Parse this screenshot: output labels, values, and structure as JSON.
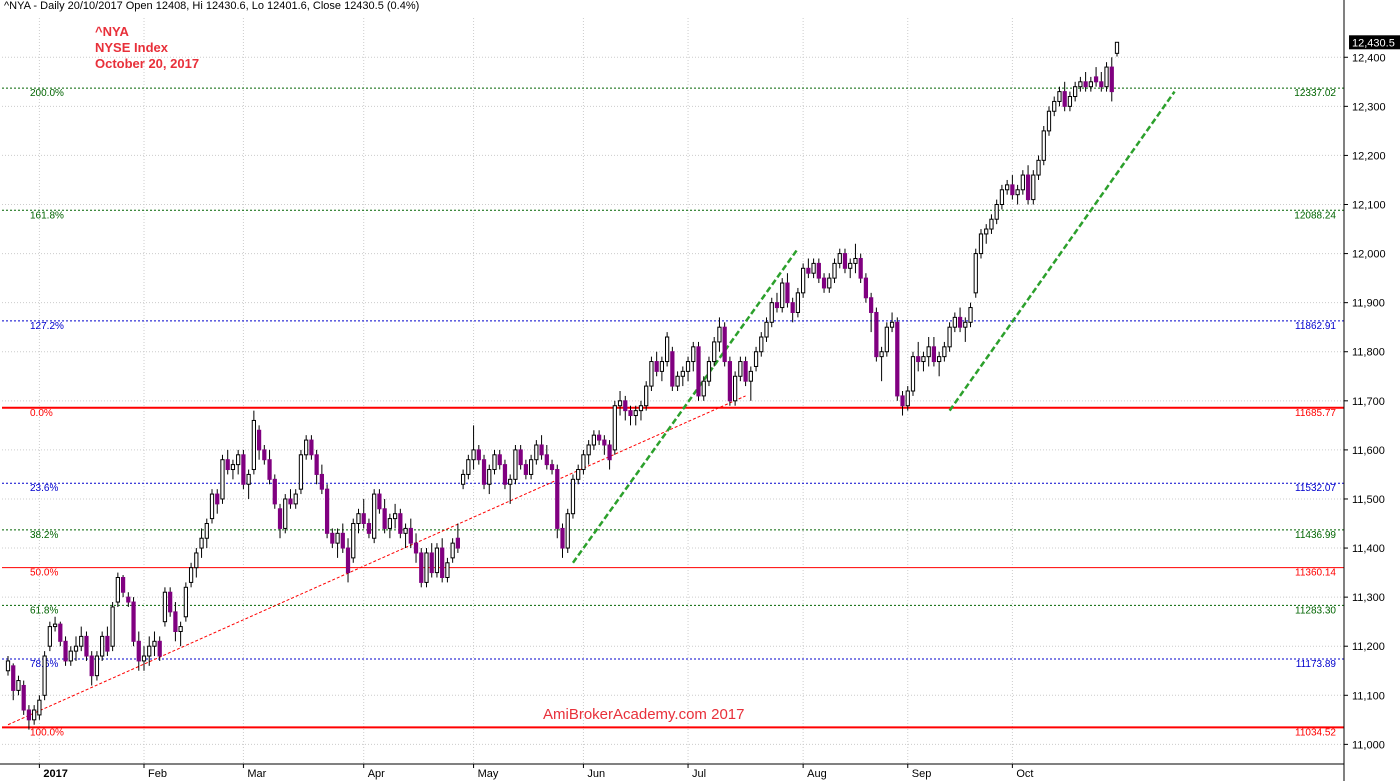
{
  "header": {
    "text": "^NYA - Daily 20/10/2017 Open 12408, Hi 12430.6, Lo 12401.6, Close 12430.5 (0.4%)"
  },
  "annotation": {
    "line1": "^NYA",
    "line2": "NYSE Index",
    "line3": "October 20, 2017"
  },
  "watermark": "AmiBrokerAcademy.com  2017",
  "chart_data": {
    "type": "candlestick",
    "x_axis_labels": [
      "2017",
      "Feb",
      "Mar",
      "Apr",
      "May",
      "Jun",
      "Jul",
      "Aug",
      "Sep",
      "Oct"
    ],
    "y_ticks": [
      11000,
      11100,
      11200,
      11300,
      11400,
      11500,
      11600,
      11700,
      11800,
      11900,
      12000,
      12100,
      12200,
      12300,
      12400
    ],
    "y_tick_labels": [
      "11,000",
      "11,100",
      "11,200",
      "11,300",
      "11,400",
      "11,500",
      "11,600",
      "11,700",
      "11,800",
      "11,900",
      "12,000",
      "12,100",
      "12,200",
      "12,300",
      "12,400"
    ],
    "ylim": [
      10960,
      12480
    ],
    "last_price_label": "12,430.5",
    "last_price": 12430.5,
    "colors": {
      "up": "#ffffff",
      "down": "#800080",
      "red": "#ff0000",
      "green": "#006400",
      "blue": "#0000cd"
    },
    "fib_levels": [
      {
        "label": "200.0%",
        "value": 12337.02,
        "value_label": "12337.02",
        "color": "#006400",
        "style": "dotted"
      },
      {
        "label": "161.8%",
        "value": 12088.24,
        "value_label": "12088.24",
        "color": "#006400",
        "style": "dotted"
      },
      {
        "label": "127.2%",
        "value": 11862.91,
        "value_label": "11862.91",
        "color": "#0000cd",
        "style": "dotted"
      },
      {
        "label": "0.0%",
        "value": 11685.77,
        "value_label": "11685.77",
        "color": "#ff0000",
        "style": "solid-thick"
      },
      {
        "label": "23.6%",
        "value": 11532.07,
        "value_label": "11532.07",
        "color": "#0000cd",
        "style": "dotted"
      },
      {
        "label": "38.2%",
        "value": 11436.99,
        "value_label": "11436.99",
        "color": "#006400",
        "style": "dotted"
      },
      {
        "label": "50.0%",
        "value": 11360.14,
        "value_label": "11360.14",
        "color": "#ff0000",
        "style": "solid"
      },
      {
        "label": "61.8%",
        "value": 11283.3,
        "value_label": "11283.30",
        "color": "#006400",
        "style": "dotted"
      },
      {
        "label": "78.6%",
        "value": 11173.89,
        "value_label": "11173.89",
        "color": "#0000cd",
        "style": "dotted"
      },
      {
        "label": "100.0%",
        "value": 11034.52,
        "value_label": "11034.52",
        "color": "#ff0000",
        "style": "solid-thick"
      }
    ],
    "trendlines": [
      {
        "from": [
          0,
          11040
        ],
        "to": [
          141,
          11710
        ],
        "color": "#ff0000",
        "style": "dotted"
      },
      {
        "from": [
          108,
          11370
        ],
        "to": [
          151,
          12010
        ],
        "color": "#2ca02c",
        "style": "dashed"
      },
      {
        "from": [
          180,
          11680
        ],
        "to": [
          223,
          12330
        ],
        "color": "#2ca02c",
        "style": "dashed"
      }
    ],
    "candles": [
      [
        11150,
        11180,
        11140,
        11170
      ],
      [
        11160,
        11165,
        11090,
        11110
      ],
      [
        11110,
        11140,
        11100,
        11130
      ],
      [
        11120,
        11130,
        11060,
        11070
      ],
      [
        11070,
        11080,
        11030,
        11050
      ],
      [
        11050,
        11080,
        11040,
        11070
      ],
      [
        11060,
        11100,
        11050,
        11090
      ],
      [
        11100,
        11190,
        11090,
        11180
      ],
      [
        11200,
        11250,
        11190,
        11240
      ],
      [
        11240,
        11260,
        11230,
        11245
      ],
      [
        11245,
        11250,
        11200,
        11210
      ],
      [
        11210,
        11220,
        11160,
        11170
      ],
      [
        11170,
        11200,
        11160,
        11190
      ],
      [
        11190,
        11220,
        11170,
        11200
      ],
      [
        11200,
        11240,
        11190,
        11220
      ],
      [
        11220,
        11230,
        11170,
        11180
      ],
      [
        11180,
        11190,
        11120,
        11140
      ],
      [
        11140,
        11190,
        11130,
        11180
      ],
      [
        11180,
        11230,
        11170,
        11220
      ],
      [
        11220,
        11240,
        11180,
        11190
      ],
      [
        11200,
        11290,
        11190,
        11280
      ],
      [
        11290,
        11350,
        11280,
        11340
      ],
      [
        11340,
        11345,
        11300,
        11310
      ],
      [
        11300,
        11310,
        11280,
        11290
      ],
      [
        11290,
        11300,
        11200,
        11210
      ],
      [
        11210,
        11230,
        11150,
        11170
      ],
      [
        11170,
        11200,
        11150,
        11180
      ],
      [
        11180,
        11220,
        11160,
        11200
      ],
      [
        11200,
        11230,
        11180,
        11210
      ],
      [
        11210,
        11220,
        11170,
        11180
      ],
      [
        11250,
        11320,
        11240,
        11310
      ],
      [
        11310,
        11320,
        11260,
        11270
      ],
      [
        11270,
        11290,
        11210,
        11230
      ],
      [
        11230,
        11250,
        11200,
        11240
      ],
      [
        11260,
        11330,
        11250,
        11320
      ],
      [
        11330,
        11370,
        11320,
        11360
      ],
      [
        11360,
        11400,
        11340,
        11390
      ],
      [
        11400,
        11440,
        11380,
        11420
      ],
      [
        11420,
        11460,
        11400,
        11450
      ],
      [
        11460,
        11520,
        11450,
        11510
      ],
      [
        11510,
        11520,
        11470,
        11490
      ],
      [
        11500,
        11590,
        11490,
        11580
      ],
      [
        11580,
        11600,
        11550,
        11560
      ],
      [
        11560,
        11580,
        11540,
        11570
      ],
      [
        11570,
        11600,
        11550,
        11590
      ],
      [
        11590,
        11600,
        11520,
        11530
      ],
      [
        11530,
        11560,
        11500,
        11550
      ],
      [
        11560,
        11680,
        11550,
        11660
      ],
      [
        11640,
        11650,
        11580,
        11600
      ],
      [
        11600,
        11610,
        11570,
        11580
      ],
      [
        11580,
        11600,
        11530,
        11540
      ],
      [
        11540,
        11550,
        11480,
        11490
      ],
      [
        11480,
        11490,
        11420,
        11440
      ],
      [
        11440,
        11510,
        11430,
        11500
      ],
      [
        11500,
        11520,
        11480,
        11490
      ],
      [
        11490,
        11520,
        11480,
        11510
      ],
      [
        11520,
        11600,
        11510,
        11590
      ],
      [
        11590,
        11630,
        11580,
        11620
      ],
      [
        11620,
        11630,
        11580,
        11590
      ],
      [
        11590,
        11600,
        11530,
        11550
      ],
      [
        11550,
        11570,
        11510,
        11520
      ],
      [
        11520,
        11530,
        11420,
        11430
      ],
      [
        11430,
        11440,
        11400,
        11410
      ],
      [
        11410,
        11440,
        11380,
        11430
      ],
      [
        11430,
        11450,
        11390,
        11400
      ],
      [
        11400,
        11420,
        11330,
        11350
      ],
      [
        11380,
        11460,
        11370,
        11450
      ],
      [
        11450,
        11480,
        11430,
        11470
      ],
      [
        11470,
        11500,
        11440,
        11450
      ],
      [
        11450,
        11460,
        11420,
        11430
      ],
      [
        11420,
        11520,
        11410,
        11510
      ],
      [
        11510,
        11520,
        11470,
        11480
      ],
      [
        11480,
        11500,
        11430,
        11440
      ],
      [
        11440,
        11470,
        11420,
        11460
      ],
      [
        11460,
        11490,
        11440,
        11470
      ],
      [
        11470,
        11480,
        11420,
        11430
      ],
      [
        11430,
        11450,
        11400,
        11440
      ],
      [
        11440,
        11460,
        11400,
        11410
      ],
      [
        11410,
        11430,
        11370,
        11390
      ],
      [
        11390,
        11400,
        11320,
        11330
      ],
      [
        11330,
        11400,
        11320,
        11390
      ],
      [
        11390,
        11410,
        11340,
        11350
      ],
      [
        11350,
        11410,
        11340,
        11400
      ],
      [
        11400,
        11420,
        11330,
        11340
      ],
      [
        11340,
        11380,
        11330,
        11370
      ],
      [
        11380,
        11420,
        11370,
        11410
      ],
      [
        11420,
        11450,
        11390,
        11400
      ],
      [
        11530,
        11560,
        11520,
        11550
      ],
      [
        11550,
        11590,
        11540,
        11580
      ],
      [
        11580,
        11650,
        11560,
        11600
      ],
      [
        11600,
        11610,
        11570,
        11580
      ],
      [
        11580,
        11590,
        11520,
        11530
      ],
      [
        11530,
        11570,
        11510,
        11560
      ],
      [
        11560,
        11600,
        11550,
        11590
      ],
      [
        11590,
        11600,
        11560,
        11570
      ],
      [
        11570,
        11580,
        11520,
        11530
      ],
      [
        11530,
        11550,
        11490,
        11540
      ],
      [
        11540,
        11610,
        11530,
        11600
      ],
      [
        11600,
        11610,
        11560,
        11570
      ],
      [
        11570,
        11580,
        11540,
        11550
      ],
      [
        11550,
        11590,
        11540,
        11580
      ],
      [
        11580,
        11620,
        11570,
        11610
      ],
      [
        11610,
        11630,
        11580,
        11590
      ],
      [
        11590,
        11610,
        11560,
        11570
      ],
      [
        11570,
        11580,
        11550,
        11560
      ],
      [
        11560,
        11570,
        11420,
        11440
      ],
      [
        11440,
        11450,
        11380,
        11400
      ],
      [
        11400,
        11480,
        11390,
        11470
      ],
      [
        11470,
        11550,
        11460,
        11540
      ],
      [
        11540,
        11570,
        11530,
        11560
      ],
      [
        11560,
        11600,
        11550,
        11590
      ],
      [
        11590,
        11620,
        11570,
        11610
      ],
      [
        11610,
        11640,
        11600,
        11630
      ],
      [
        11630,
        11640,
        11610,
        11620
      ],
      [
        11620,
        11630,
        11590,
        11610
      ],
      [
        11610,
        11620,
        11560,
        11580
      ],
      [
        11600,
        11700,
        11590,
        11690
      ],
      [
        11690,
        11720,
        11670,
        11700
      ],
      [
        11700,
        11710,
        11660,
        11680
      ],
      [
        11680,
        11690,
        11650,
        11670
      ],
      [
        11670,
        11690,
        11650,
        11680
      ],
      [
        11680,
        11700,
        11660,
        11690
      ],
      [
        11690,
        11740,
        11680,
        11730
      ],
      [
        11730,
        11790,
        11720,
        11780
      ],
      [
        11780,
        11800,
        11750,
        11760
      ],
      [
        11760,
        11790,
        11740,
        11780
      ],
      [
        11780,
        11840,
        11770,
        11830
      ],
      [
        11800,
        11810,
        11720,
        11730
      ],
      [
        11730,
        11760,
        11720,
        11750
      ],
      [
        11750,
        11770,
        11730,
        11760
      ],
      [
        11760,
        11790,
        11740,
        11780
      ],
      [
        11780,
        11820,
        11760,
        11810
      ],
      [
        11810,
        11820,
        11700,
        11710
      ],
      [
        11710,
        11750,
        11700,
        11740
      ],
      [
        11740,
        11790,
        11730,
        11780
      ],
      [
        11780,
        11830,
        11770,
        11820
      ],
      [
        11820,
        11870,
        11800,
        11850
      ],
      [
        11850,
        11860,
        11770,
        11780
      ],
      [
        11780,
        11790,
        11690,
        11700
      ],
      [
        11700,
        11760,
        11690,
        11750
      ],
      [
        11750,
        11790,
        11740,
        11780
      ],
      [
        11780,
        11790,
        11730,
        11740
      ],
      [
        11740,
        11770,
        11700,
        11760
      ],
      [
        11770,
        11810,
        11760,
        11800
      ],
      [
        11800,
        11840,
        11790,
        11830
      ],
      [
        11830,
        11870,
        11820,
        11860
      ],
      [
        11860,
        11910,
        11850,
        11900
      ],
      [
        11900,
        11920,
        11880,
        11890
      ],
      [
        11890,
        11950,
        11880,
        11940
      ],
      [
        11940,
        11960,
        11890,
        11900
      ],
      [
        11900,
        11910,
        11860,
        11880
      ],
      [
        11880,
        11930,
        11870,
        11920
      ],
      [
        11920,
        11980,
        11910,
        11970
      ],
      [
        11970,
        11990,
        11950,
        11960
      ],
      [
        11960,
        11990,
        11950,
        11980
      ],
      [
        11980,
        11990,
        11940,
        11950
      ],
      [
        11950,
        11960,
        11920,
        11930
      ],
      [
        11930,
        11960,
        11920,
        11950
      ],
      [
        11950,
        11990,
        11940,
        11980
      ],
      [
        11980,
        12010,
        11970,
        12000
      ],
      [
        12000,
        12010,
        11960,
        11970
      ],
      [
        11970,
        11990,
        11950,
        11980
      ],
      [
        11980,
        12020,
        11960,
        11990
      ],
      [
        11990,
        12000,
        11940,
        11950
      ],
      [
        11950,
        11960,
        11900,
        11910
      ],
      [
        11910,
        11920,
        11840,
        11880
      ],
      [
        11880,
        11890,
        11780,
        11790
      ],
      [
        11790,
        11810,
        11740,
        11800
      ],
      [
        11800,
        11860,
        11790,
        11850
      ],
      [
        11850,
        11880,
        11840,
        11860
      ],
      [
        11860,
        11870,
        11700,
        11710
      ],
      [
        11710,
        11720,
        11670,
        11690
      ],
      [
        11690,
        11730,
        11680,
        11720
      ],
      [
        11720,
        11800,
        11710,
        11790
      ],
      [
        11790,
        11820,
        11760,
        11780
      ],
      [
        11780,
        11800,
        11760,
        11790
      ],
      [
        11790,
        11830,
        11770,
        11810
      ],
      [
        11810,
        11830,
        11770,
        11780
      ],
      [
        11780,
        11800,
        11750,
        11790
      ],
      [
        11790,
        11820,
        11780,
        11810
      ],
      [
        11810,
        11860,
        11800,
        11850
      ],
      [
        11850,
        11880,
        11840,
        11870
      ],
      [
        11870,
        11890,
        11840,
        11850
      ],
      [
        11850,
        11870,
        11820,
        11860
      ],
      [
        11860,
        11900,
        11850,
        11890
      ],
      [
        11920,
        12010,
        11910,
        12000
      ],
      [
        12000,
        12050,
        11990,
        12040
      ],
      [
        12040,
        12060,
        12020,
        12050
      ],
      [
        12050,
        12080,
        12040,
        12070
      ],
      [
        12070,
        12110,
        12060,
        12100
      ],
      [
        12100,
        12140,
        12090,
        12130
      ],
      [
        12130,
        12150,
        12120,
        12140
      ],
      [
        12140,
        12160,
        12110,
        12120
      ],
      [
        12120,
        12140,
        12100,
        12130
      ],
      [
        12130,
        12170,
        12120,
        12160
      ],
      [
        12160,
        12180,
        12100,
        12110
      ],
      [
        12110,
        12170,
        12100,
        12160
      ],
      [
        12160,
        12200,
        12150,
        12190
      ],
      [
        12190,
        12260,
        12180,
        12250
      ],
      [
        12250,
        12300,
        12240,
        12290
      ],
      [
        12290,
        12320,
        12280,
        12310
      ],
      [
        12310,
        12340,
        12300,
        12330
      ],
      [
        12330,
        12350,
        12290,
        12300
      ],
      [
        12300,
        12330,
        12290,
        12320
      ],
      [
        12320,
        12350,
        12310,
        12340
      ],
      [
        12340,
        12360,
        12330,
        12350
      ],
      [
        12350,
        12370,
        12330,
        12340
      ],
      [
        12340,
        12360,
        12330,
        12350
      ],
      [
        12360,
        12380,
        12340,
        12350
      ],
      [
        12350,
        12370,
        12330,
        12340
      ],
      [
        12340,
        12390,
        12330,
        12380
      ],
      [
        12380,
        12400,
        12310,
        12330
      ],
      [
        12408,
        12430.6,
        12401.6,
        12430.5
      ]
    ]
  }
}
